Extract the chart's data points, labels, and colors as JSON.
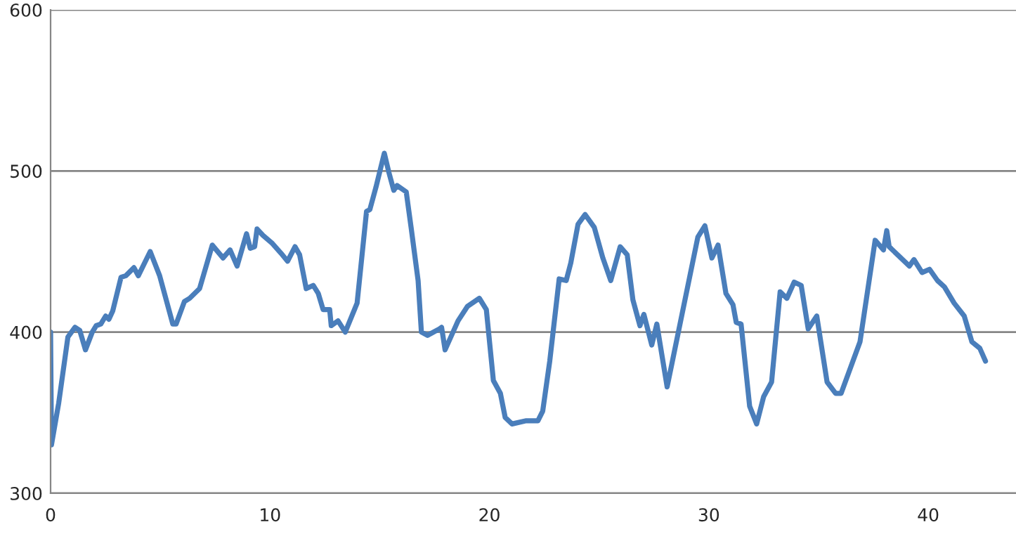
{
  "chart_data": {
    "type": "line",
    "x": [
      0,
      0.04,
      0.37,
      0.79,
      1.11,
      1.33,
      1.59,
      1.9,
      2.08,
      2.29,
      2.51,
      2.66,
      2.83,
      3.21,
      3.43,
      3.8,
      4.0,
      4.54,
      4.97,
      5.57,
      5.72,
      6.1,
      6.34,
      6.79,
      7.37,
      7.86,
      8.18,
      8.5,
      8.93,
      9.1,
      9.3,
      9.41,
      9.68,
      10.11,
      10.5,
      10.8,
      11.14,
      11.35,
      11.65,
      11.97,
      12.2,
      12.42,
      12.72,
      12.79,
      13.1,
      13.43,
      13.97,
      14.4,
      14.55,
      14.83,
      15.21,
      15.42,
      15.64,
      15.79,
      16.21,
      16.43,
      16.75,
      16.9,
      17.18,
      17.72,
      17.82,
      17.98,
      18.57,
      19.0,
      19.54,
      19.86,
      20.18,
      20.5,
      20.72,
      21.03,
      21.68,
      22.21,
      22.43,
      22.75,
      23.18,
      23.5,
      23.71,
      24.04,
      24.36,
      24.78,
      25.17,
      25.53,
      25.96,
      26.28,
      26.54,
      26.86,
      27.04,
      27.4,
      27.63,
      28.1,
      29.5,
      29.82,
      30.14,
      30.42,
      30.78,
      31.1,
      31.25,
      31.47,
      31.86,
      32.18,
      32.5,
      32.86,
      33.25,
      33.56,
      33.89,
      34.21,
      34.53,
      34.92,
      35.39,
      35.78,
      36.03,
      36.89,
      37.58,
      37.96,
      38.11,
      38.22,
      39.14,
      39.35,
      39.72,
      40.06,
      40.42,
      40.74,
      41.18,
      41.64,
      41.99,
      42.35,
      42.61
    ],
    "series": [
      {
        "color": "#4a7ebb",
        "values": [
          400,
          330,
          356,
          397,
          403,
          401,
          389,
          400,
          404,
          405,
          410,
          408,
          413,
          434,
          435,
          440,
          435,
          450,
          435,
          405,
          405,
          419,
          421,
          427,
          454,
          446,
          451,
          441,
          461,
          452,
          453,
          464,
          460,
          455,
          449,
          444,
          453,
          448,
          427,
          429,
          424,
          414,
          414,
          404,
          407,
          400,
          418,
          475,
          476,
          490,
          511,
          499,
          488,
          491,
          487,
          465,
          432,
          400,
          398,
          402,
          403,
          389,
          407,
          416,
          421,
          414,
          370,
          362,
          347,
          343,
          345,
          345,
          351,
          382,
          433,
          432,
          443,
          467,
          473,
          465,
          446,
          432,
          453,
          448,
          420,
          404,
          411,
          392,
          405,
          366,
          459,
          466,
          446,
          454,
          424,
          417,
          406,
          405,
          354,
          343,
          360,
          369,
          425,
          421,
          431,
          429,
          402,
          410,
          369,
          362,
          362,
          394,
          457,
          451,
          463,
          453,
          441,
          445,
          437,
          439,
          432,
          428,
          418,
          410,
          394,
          390,
          382
        ]
      }
    ],
    "xlim": [
      0,
      44
    ],
    "xticks": [
      0,
      10,
      20,
      30,
      40
    ],
    "ylim": [
      300,
      600
    ],
    "yticks": [
      300,
      400,
      500,
      600
    ],
    "grid": "y",
    "marker": "none",
    "line_style": "solid"
  }
}
